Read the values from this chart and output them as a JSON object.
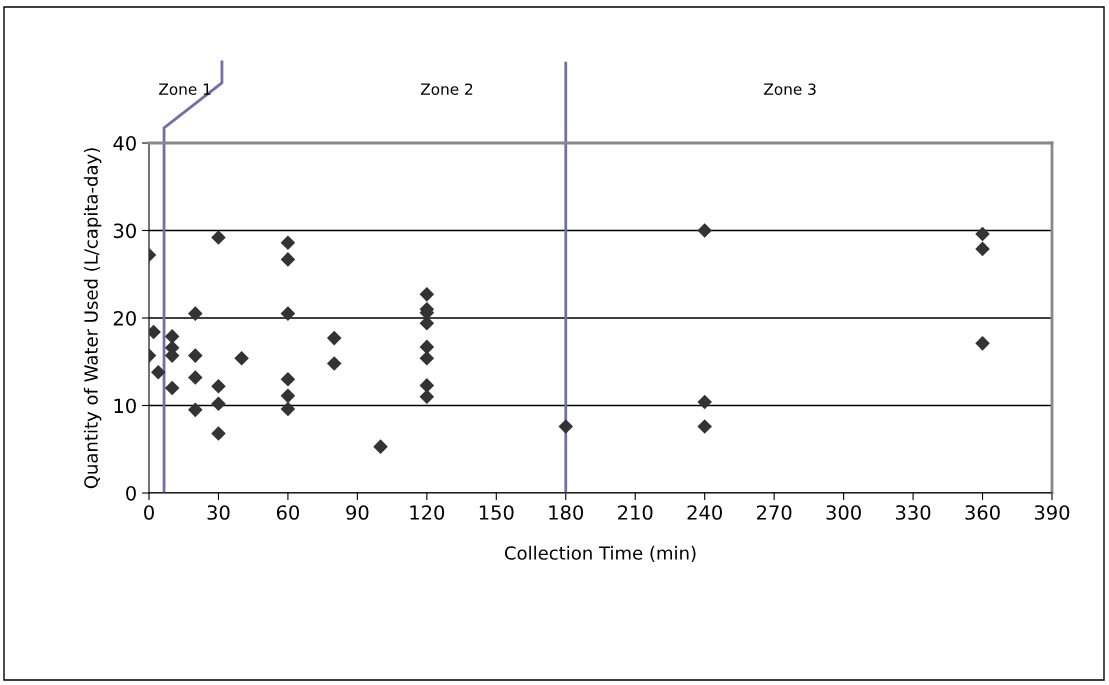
{
  "chart_data": {
    "type": "scatter",
    "xlabel": "Collection Time (min)",
    "ylabel": "Quantity of Water Used (L/capita-day)",
    "series": [
      {
        "color": "#333333",
        "marker": "diamond",
        "x": [
          0,
          2,
          0,
          4,
          10,
          10,
          10,
          10,
          20,
          20,
          20,
          20,
          30,
          30,
          30,
          30,
          40,
          60,
          60,
          60,
          60,
          60,
          60,
          80,
          80,
          100,
          120,
          120,
          120,
          120,
          120,
          120,
          120,
          120,
          180,
          240,
          240,
          240,
          360,
          360,
          360
        ],
        "values": [
          27.2,
          18.4,
          15.7,
          13.8,
          17.9,
          16.6,
          15.7,
          12.0,
          20.5,
          15.7,
          13.2,
          9.5,
          29.2,
          12.2,
          10.2,
          6.8,
          15.4,
          28.6,
          26.7,
          20.5,
          13.0,
          11.1,
          9.6,
          17.7,
          14.8,
          5.3,
          22.7,
          21.0,
          20.6,
          19.4,
          16.7,
          15.4,
          12.3,
          11.0,
          7.6,
          30.0,
          10.4,
          7.6,
          29.6,
          27.9,
          17.1
        ]
      }
    ],
    "xlim": [
      0,
      390
    ],
    "xticks": [
      0,
      30,
      60,
      90,
      120,
      150,
      180,
      210,
      240,
      270,
      300,
      330,
      360,
      390
    ],
    "ylim": [
      0,
      40
    ],
    "yticks": [
      0,
      10,
      20,
      30,
      40
    ],
    "grid": "y",
    "ref_lines": [
      {
        "axis": "x",
        "value": 6.5,
        "color": "#7070a8"
      },
      {
        "axis": "x",
        "value": 180,
        "color": "#7070a8"
      }
    ],
    "annotations": [
      "Zone 1",
      "Zone 2",
      "Zone 3"
    ]
  }
}
